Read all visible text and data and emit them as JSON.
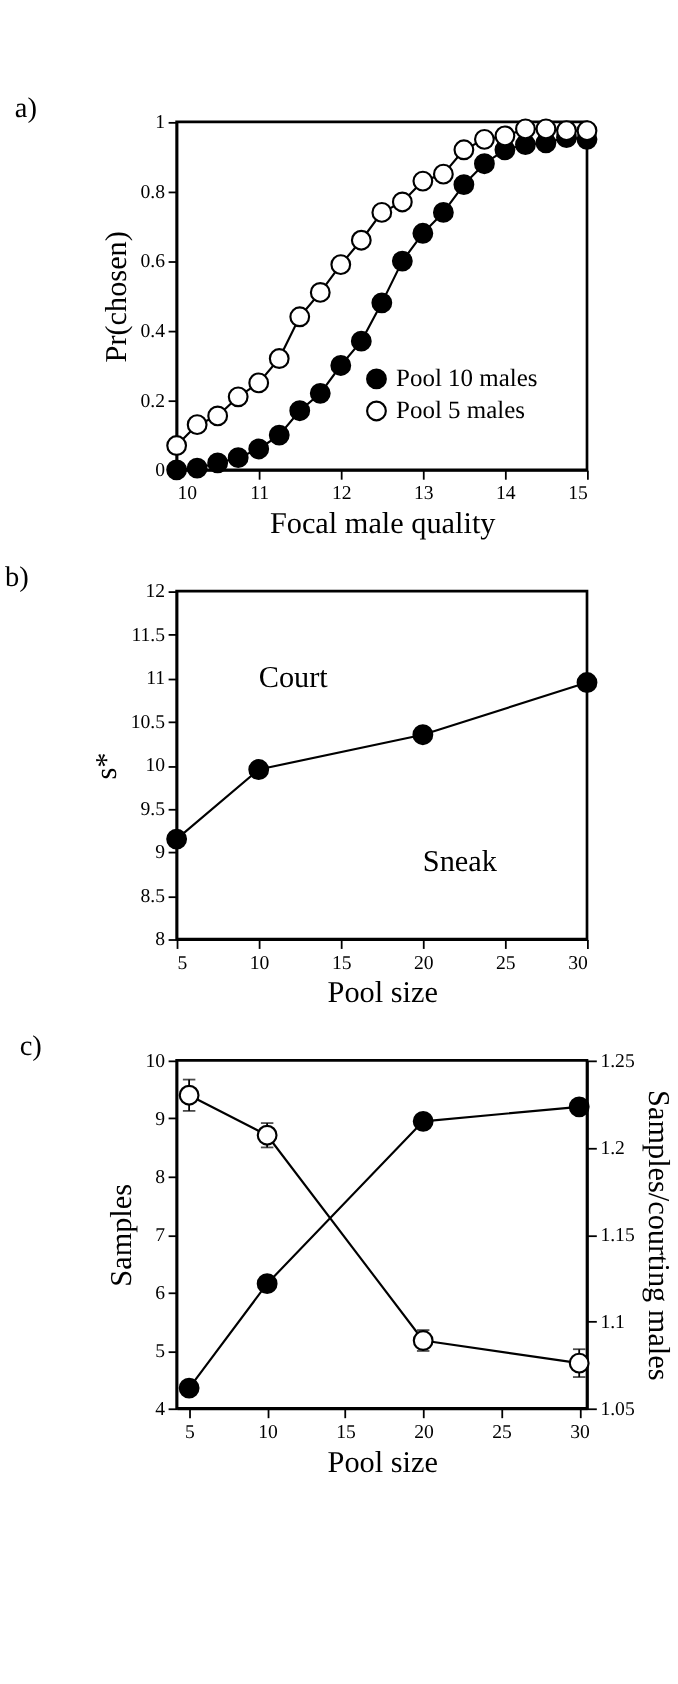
{
  "chart_data": [
    {
      "type": "line",
      "title": "a)",
      "xlabel": "Focal male quality",
      "ylabel": "Pr(chosen)",
      "x": [
        10,
        10.25,
        10.5,
        10.75,
        11,
        11.25,
        11.5,
        11.75,
        12,
        12.25,
        12.5,
        12.75,
        13,
        13.25,
        13.5,
        13.75,
        14,
        14.25,
        14.5,
        14.75,
        15
      ],
      "xlim": [
        10,
        15
      ],
      "xticks": [
        10,
        11,
        12,
        13,
        14,
        15
      ],
      "ylim": [
        0,
        1
      ],
      "yticks": [
        0,
        0.2,
        0.4,
        0.6,
        0.8,
        1
      ],
      "legend": "bottom right",
      "marker": "circle",
      "line_style": "solid",
      "series": [
        {
          "name": "Pool 10 males",
          "color": "#000000",
          "values": [
            0,
            0.005,
            0.02,
            0.035,
            0.06,
            0.1,
            0.17,
            0.22,
            0.3,
            0.37,
            0.48,
            0.6,
            0.68,
            0.74,
            0.82,
            0.88,
            0.92,
            0.935,
            0.94,
            0.955,
            0.95
          ]
        },
        {
          "name": "Pool 5 males",
          "color": "#ffffff",
          "values": [
            0.07,
            0.13,
            0.155,
            0.21,
            0.25,
            0.32,
            0.44,
            0.51,
            0.59,
            0.66,
            0.74,
            0.77,
            0.83,
            0.85,
            0.92,
            0.95,
            0.96,
            0.98,
            0.98,
            0.975,
            0.975
          ]
        }
      ]
    },
    {
      "type": "line",
      "title": "b)",
      "xlabel": "Pool size",
      "ylabel": "s*",
      "x": [
        5,
        10,
        20,
        30
      ],
      "xlim": [
        5,
        30
      ],
      "xticks": [
        5,
        10,
        15,
        20,
        25,
        30
      ],
      "ylim": [
        8,
        12
      ],
      "yticks": [
        8,
        8.5,
        9,
        9.5,
        10,
        10.5,
        11,
        11.5,
        12
      ],
      "marker": "circle",
      "line_style": "solid",
      "annotations": [
        "Court",
        "Sneak"
      ],
      "series": [
        {
          "color": "#000000",
          "values": [
            9.15,
            9.95,
            10.35,
            10.95
          ]
        }
      ]
    },
    {
      "type": "line",
      "title": "c)",
      "xlabel": "Pool size",
      "ylabel": "Samples",
      "y2label": "Samples/courting males",
      "x": [
        5,
        10,
        20,
        30
      ],
      "xlim": [
        4.2,
        30.5
      ],
      "xticks": [
        5,
        10,
        15,
        20,
        25,
        30
      ],
      "ylim": [
        4,
        10
      ],
      "yticks": [
        4,
        5,
        6,
        7,
        8,
        9,
        10
      ],
      "y2lim": [
        1.05,
        1.25
      ],
      "y2ticks": [
        1.05,
        1.1,
        1.15,
        1.2,
        1.25
      ],
      "marker": "circle",
      "line_style": "solid",
      "series": [
        {
          "color": "#000000",
          "values": [
            4.35,
            6.15,
            8.95,
            9.2
          ]
        },
        {
          "color": "#ffffff",
          "axis": "y2",
          "values": [
            1.23,
            1.207,
            1.089,
            1.076
          ],
          "errors": [
            0.009,
            0.007,
            0.006,
            0.008
          ]
        }
      ]
    }
  ]
}
